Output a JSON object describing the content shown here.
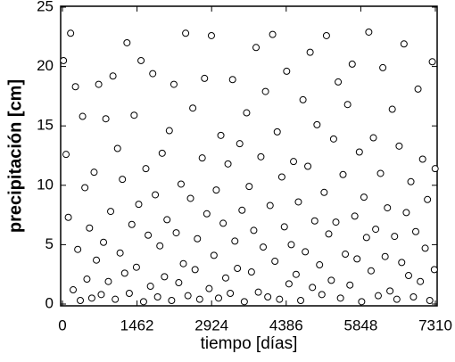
{
  "chart_data": {
    "type": "scatter",
    "xlabel": "tiempo [días]",
    "ylabel": "precipitación [cm]",
    "xlim": [
      0,
      7310
    ],
    "ylim": [
      0,
      25
    ],
    "xticks": [
      0,
      1462,
      2924,
      4386,
      5848,
      7310
    ],
    "yticks": [
      0,
      5,
      10,
      15,
      20,
      25
    ],
    "series": [
      {
        "color": "#000000",
        "x": [
          20,
          70,
          115,
          160,
          210,
          255,
          300,
          350,
          395,
          440,
          480,
          530,
          575,
          620,
          665,
          710,
          760,
          805,
          850,
          900,
          945,
          990,
          1035,
          1080,
          1130,
          1175,
          1220,
          1265,
          1310,
          1360,
          1405,
          1450,
          1495,
          1540,
          1590,
          1635,
          1680,
          1725,
          1770,
          1820,
          1865,
          1910,
          1955,
          2000,
          2050,
          2095,
          2140,
          2185,
          2230,
          2280,
          2325,
          2370,
          2415,
          2460,
          2510,
          2555,
          2600,
          2645,
          2690,
          2740,
          2785,
          2830,
          2875,
          2920,
          2970,
          3015,
          3060,
          3105,
          3150,
          3200,
          3245,
          3290,
          3335,
          3380,
          3430,
          3475,
          3520,
          3565,
          3610,
          3660,
          3705,
          3750,
          3795,
          3840,
          3890,
          3935,
          3980,
          4025,
          4070,
          4120,
          4165,
          4210,
          4255,
          4300,
          4350,
          4395,
          4440,
          4485,
          4530,
          4580,
          4625,
          4670,
          4715,
          4760,
          4810,
          4855,
          4900,
          4945,
          4990,
          5040,
          5085,
          5130,
          5175,
          5220,
          5270,
          5315,
          5360,
          5405,
          5450,
          5500,
          5545,
          5590,
          5635,
          5680,
          5730,
          5775,
          5820,
          5865,
          5910,
          5960,
          6005,
          6050,
          6095,
          6140,
          6190,
          6235,
          6280,
          6325,
          6370,
          6420,
          6465,
          6510,
          6555,
          6600,
          6650,
          6695,
          6740,
          6785,
          6830,
          6880,
          6925,
          6970,
          7015,
          7060,
          7110,
          7155,
          7200,
          7250,
          7290,
          7305
        ],
        "values": [
          20.5,
          12.6,
          7.3,
          22.8,
          1.2,
          18.3,
          4.6,
          0.3,
          15.8,
          9.8,
          2.1,
          6.4,
          0.5,
          11.1,
          3.7,
          18.5,
          0.8,
          5.2,
          15.6,
          1.9,
          7.8,
          19.2,
          0.4,
          13.1,
          4.3,
          10.5,
          2.6,
          22.0,
          0.9,
          6.7,
          15.9,
          3.1,
          8.4,
          20.5,
          0.2,
          11.4,
          5.8,
          1.5,
          19.4,
          9.2,
          0.6,
          4.9,
          12.7,
          2.3,
          7.1,
          14.6,
          0.3,
          18.5,
          6.0,
          1.8,
          10.1,
          3.4,
          22.8,
          0.7,
          8.9,
          16.5,
          2.9,
          5.5,
          0.4,
          12.3,
          19.0,
          7.6,
          1.3,
          22.6,
          4.1,
          9.6,
          0.5,
          14.2,
          6.8,
          2.2,
          11.8,
          0.9,
          18.9,
          5.3,
          3.0,
          13.5,
          7.9,
          0.2,
          16.1,
          9.9,
          2.7,
          6.2,
          21.6,
          1.0,
          12.4,
          4.8,
          17.9,
          0.6,
          8.3,
          22.7,
          3.6,
          14.5,
          0.4,
          10.7,
          6.5,
          19.6,
          1.7,
          5.0,
          12.0,
          2.5,
          8.6,
          0.3,
          17.2,
          4.4,
          11.6,
          21.2,
          1.4,
          7.0,
          15.1,
          3.3,
          0.8,
          9.4,
          22.6,
          5.9,
          2.0,
          13.9,
          6.9,
          18.7,
          0.5,
          10.9,
          4.2,
          16.8,
          1.6,
          20.2,
          7.4,
          3.8,
          12.8,
          0.2,
          9.0,
          5.6,
          22.9,
          2.8,
          14.0,
          6.3,
          0.7,
          11.0,
          19.9,
          4.0,
          8.1,
          1.1,
          16.4,
          5.7,
          0.4,
          13.3,
          3.5,
          21.9,
          7.7,
          2.4,
          10.3,
          0.6,
          6.1,
          18.1,
          1.9,
          12.2,
          4.7,
          8.8,
          0.3,
          20.4,
          2.9,
          11.4
        ]
      }
    ]
  }
}
